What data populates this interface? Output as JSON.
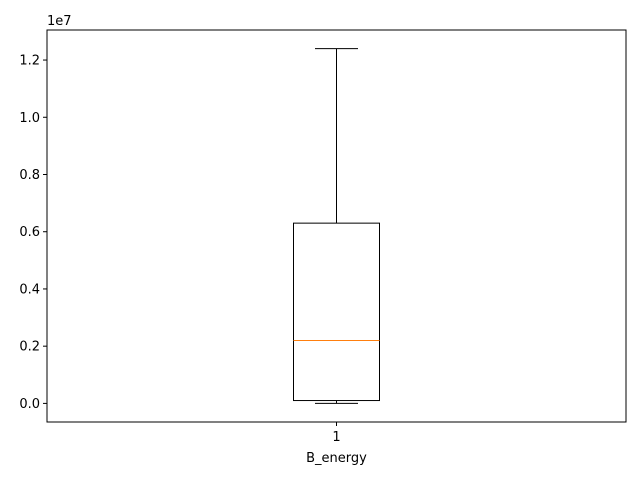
{
  "chart_data": {
    "type": "box",
    "xlabel": "B_energy",
    "ylabel": "",
    "title": "",
    "y_scale_label": "1e7",
    "ylim": [
      -0.065,
      1.305
    ],
    "x_categories": [
      "1"
    ],
    "yticks": [
      0.0,
      0.2,
      0.4,
      0.6,
      0.8,
      1.0,
      1.2
    ],
    "ytick_labels": [
      "0.0",
      "0.2",
      "0.4",
      "0.6",
      "0.8",
      "1.0",
      "1.2"
    ],
    "boxes": [
      {
        "category": "1",
        "whisker_low": 0.0,
        "q1": 0.01,
        "median": 0.22,
        "q3": 0.63,
        "whisker_high": 1.24
      }
    ],
    "colors": {
      "box": "#000000",
      "median": "#ff7f0e",
      "axes": "#000000"
    },
    "grid": false
  }
}
